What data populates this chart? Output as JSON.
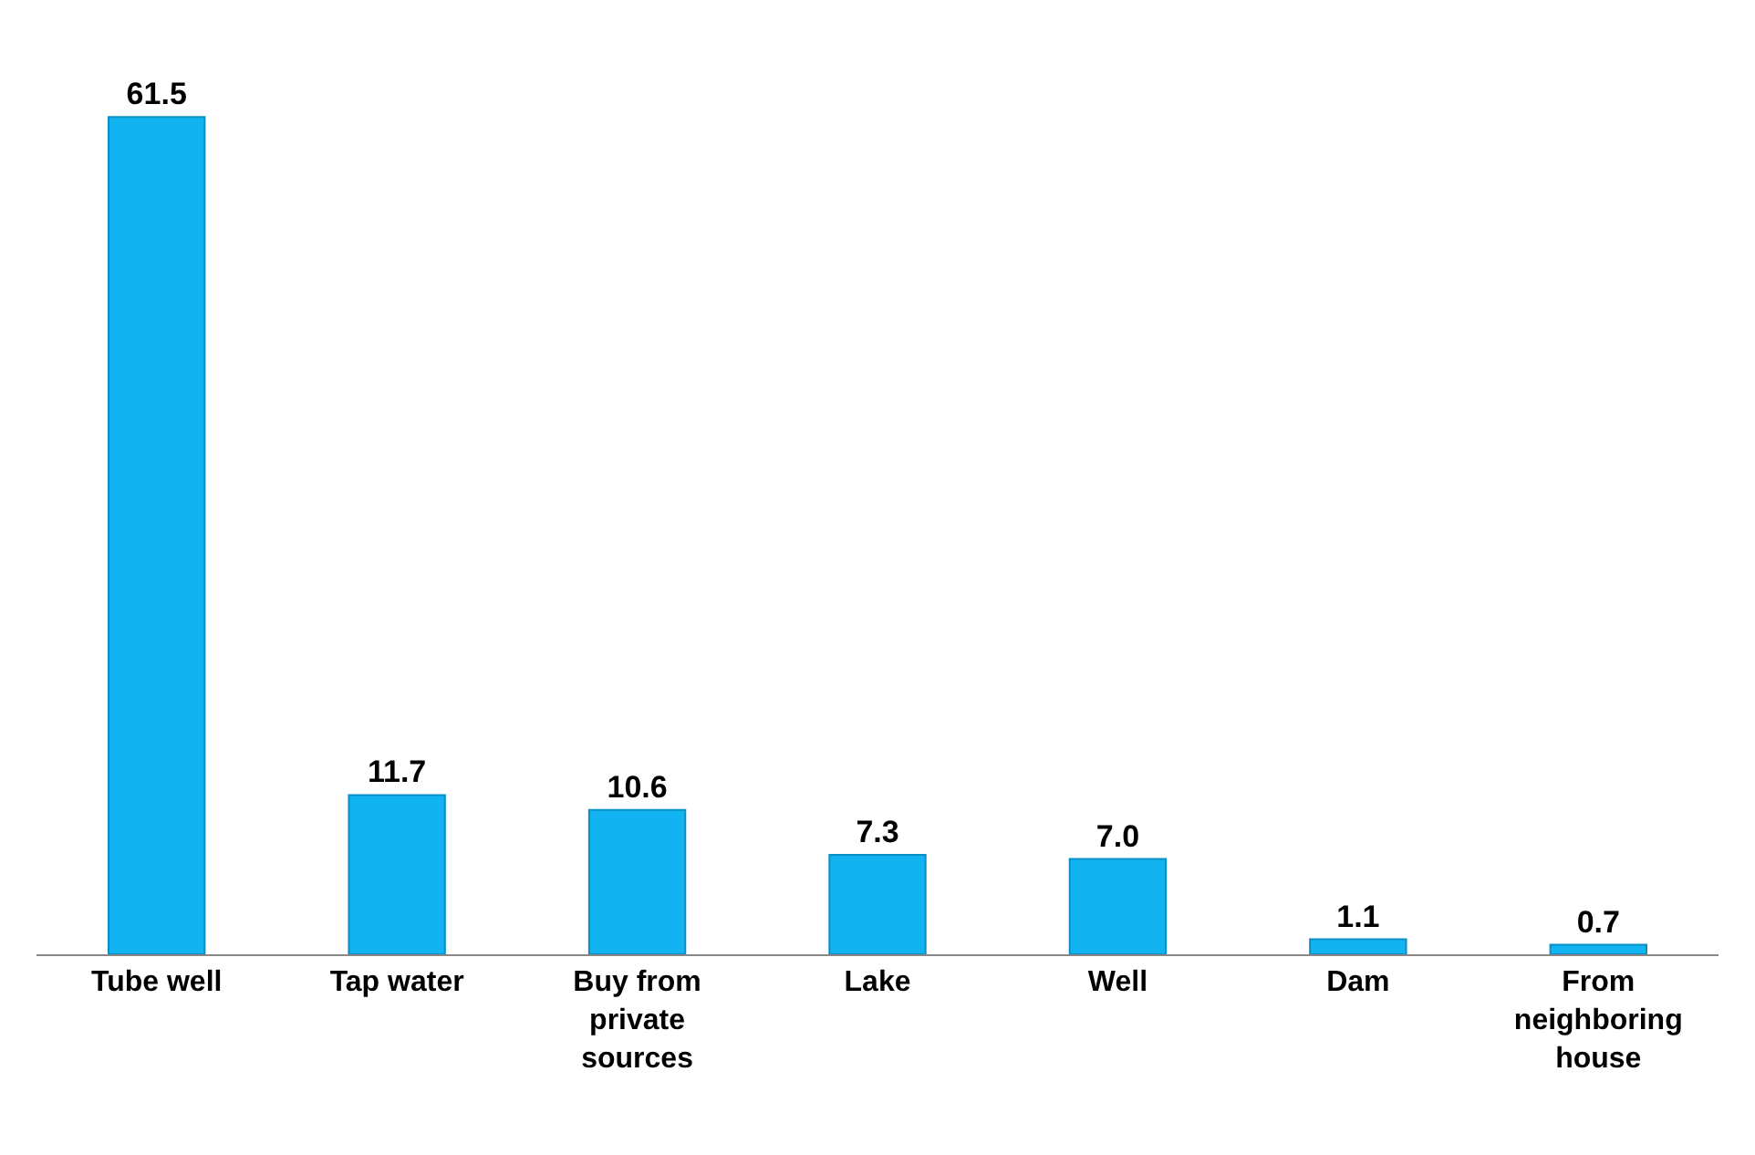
{
  "chart_data": {
    "type": "bar",
    "categories": [
      "Tube well",
      "Tap water",
      "Buy from private sources",
      "Lake",
      "Well",
      "Dam",
      "From neighboring house"
    ],
    "values": [
      61.5,
      11.7,
      10.6,
      7.3,
      7.0,
      1.1,
      0.7
    ],
    "value_labels": [
      "61.5",
      "11.7",
      "10.6",
      "7.3",
      "7.0",
      "1.1",
      "0.7"
    ],
    "color": "#11b4f0"
  }
}
